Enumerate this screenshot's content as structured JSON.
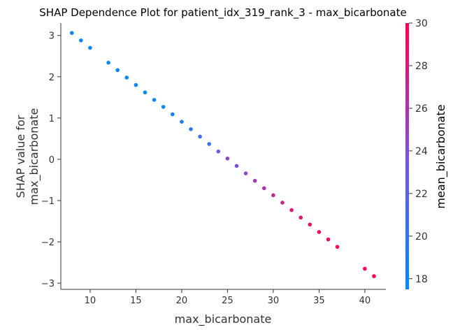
{
  "chart_data": {
    "type": "scatter",
    "title": "SHAP Dependence Plot for patient_idx_319_rank_3 - max_bicarbonate",
    "xlabel": "max_bicarbonate",
    "ylabel_lines": [
      "SHAP value for",
      "max_bicarbonate"
    ],
    "xlim": [
      6.8,
      42.3
    ],
    "ylim": [
      -3.15,
      3.3
    ],
    "xticks": [
      10,
      15,
      20,
      25,
      30,
      35,
      40
    ],
    "yticks": [
      -3,
      -2,
      -1,
      0,
      1,
      2,
      3
    ],
    "ytick_labels": [
      "−3",
      "−2",
      "−1",
      "0",
      "1",
      "2",
      "3"
    ],
    "colorbar": {
      "label": "mean_bicarbonate",
      "range": [
        17.5,
        30
      ],
      "ticks": [
        18,
        20,
        22,
        24,
        26,
        28,
        30
      ],
      "color_low": "#008afb",
      "color_high": "#ff0052"
    },
    "points": [
      {
        "x": 8,
        "y": 3.06,
        "c": 17.8
      },
      {
        "x": 9,
        "y": 2.88,
        "c": 17.8
      },
      {
        "x": 10,
        "y": 2.7,
        "c": 17.8
      },
      {
        "x": 12,
        "y": 2.34,
        "c": 17.8
      },
      {
        "x": 13,
        "y": 2.16,
        "c": 17.8
      },
      {
        "x": 14,
        "y": 1.98,
        "c": 17.8
      },
      {
        "x": 15,
        "y": 1.8,
        "c": 17.9
      },
      {
        "x": 16,
        "y": 1.62,
        "c": 17.9
      },
      {
        "x": 17,
        "y": 1.44,
        "c": 18.0
      },
      {
        "x": 18,
        "y": 1.27,
        "c": 18.2
      },
      {
        "x": 19,
        "y": 1.09,
        "c": 18.5
      },
      {
        "x": 20,
        "y": 0.91,
        "c": 19.0
      },
      {
        "x": 21,
        "y": 0.73,
        "c": 19.8
      },
      {
        "x": 22,
        "y": 0.55,
        "c": 21.0
      },
      {
        "x": 23,
        "y": 0.37,
        "c": 20.2
      },
      {
        "x": 24,
        "y": 0.19,
        "c": 22.5
      },
      {
        "x": 25,
        "y": 0.02,
        "c": 24.5
      },
      {
        "x": 26,
        "y": -0.16,
        "c": 24.0
      },
      {
        "x": 27,
        "y": -0.34,
        "c": 24.5
      },
      {
        "x": 28,
        "y": -0.52,
        "c": 25.5
      },
      {
        "x": 29,
        "y": -0.7,
        "c": 26.0
      },
      {
        "x": 30,
        "y": -0.87,
        "c": 27.0
      },
      {
        "x": 31,
        "y": -1.05,
        "c": 27.5
      },
      {
        "x": 32,
        "y": -1.23,
        "c": 28.0
      },
      {
        "x": 33,
        "y": -1.41,
        "c": 28.5
      },
      {
        "x": 34,
        "y": -1.58,
        "c": 29.0
      },
      {
        "x": 35,
        "y": -1.76,
        "c": 29.5
      },
      {
        "x": 36,
        "y": -1.94,
        "c": 29.5
      },
      {
        "x": 37,
        "y": -2.12,
        "c": 29.8
      },
      {
        "x": 40,
        "y": -2.65,
        "c": 30.0
      },
      {
        "x": 41,
        "y": -2.83,
        "c": 30.0
      }
    ]
  }
}
